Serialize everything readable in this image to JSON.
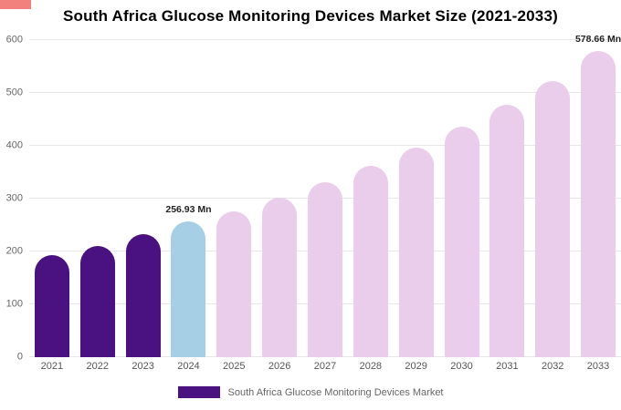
{
  "page": {
    "title": "South Africa Glucose Monitoring Devices Market Size (2021-2033)"
  },
  "accent": {
    "color": "#f2807d"
  },
  "legend": {
    "label": "South Africa Glucose Monitoring Devices Market",
    "swatch_color": "#4a1180"
  },
  "colors": {
    "historical": "#4a1180",
    "current_year": "#a6cfe5",
    "forecast": "#e9cdea",
    "gridline": "#e7e7e7"
  },
  "chart_data": {
    "type": "bar",
    "title": "South Africa Glucose Monitoring Devices Market Size (2021-2033)",
    "categories": [
      "2021",
      "2022",
      "2023",
      "2024",
      "2025",
      "2026",
      "2027",
      "2028",
      "2029",
      "2030",
      "2031",
      "2032",
      "2033"
    ],
    "values": [
      193,
      211,
      232,
      256.93,
      276,
      302,
      331,
      362,
      397,
      436,
      477,
      523,
      578.66
    ],
    "bar_colors": [
      "#4a1180",
      "#4a1180",
      "#4a1180",
      "#a6cfe5",
      "#e9cdea",
      "#e9cdea",
      "#e9cdea",
      "#e9cdea",
      "#e9cdea",
      "#e9cdea",
      "#e9cdea",
      "#e9cdea",
      "#e9cdea"
    ],
    "xlabel": "",
    "ylabel": "",
    "ylim": [
      0,
      600
    ],
    "yticks": [
      0,
      100,
      200,
      300,
      400,
      500,
      600
    ],
    "grid": "horizontal",
    "legend_position": "bottom",
    "annotations": [
      {
        "index": 3,
        "text": "256.93 Mn"
      },
      {
        "index": 12,
        "text": "578.66 Mn"
      }
    ]
  }
}
